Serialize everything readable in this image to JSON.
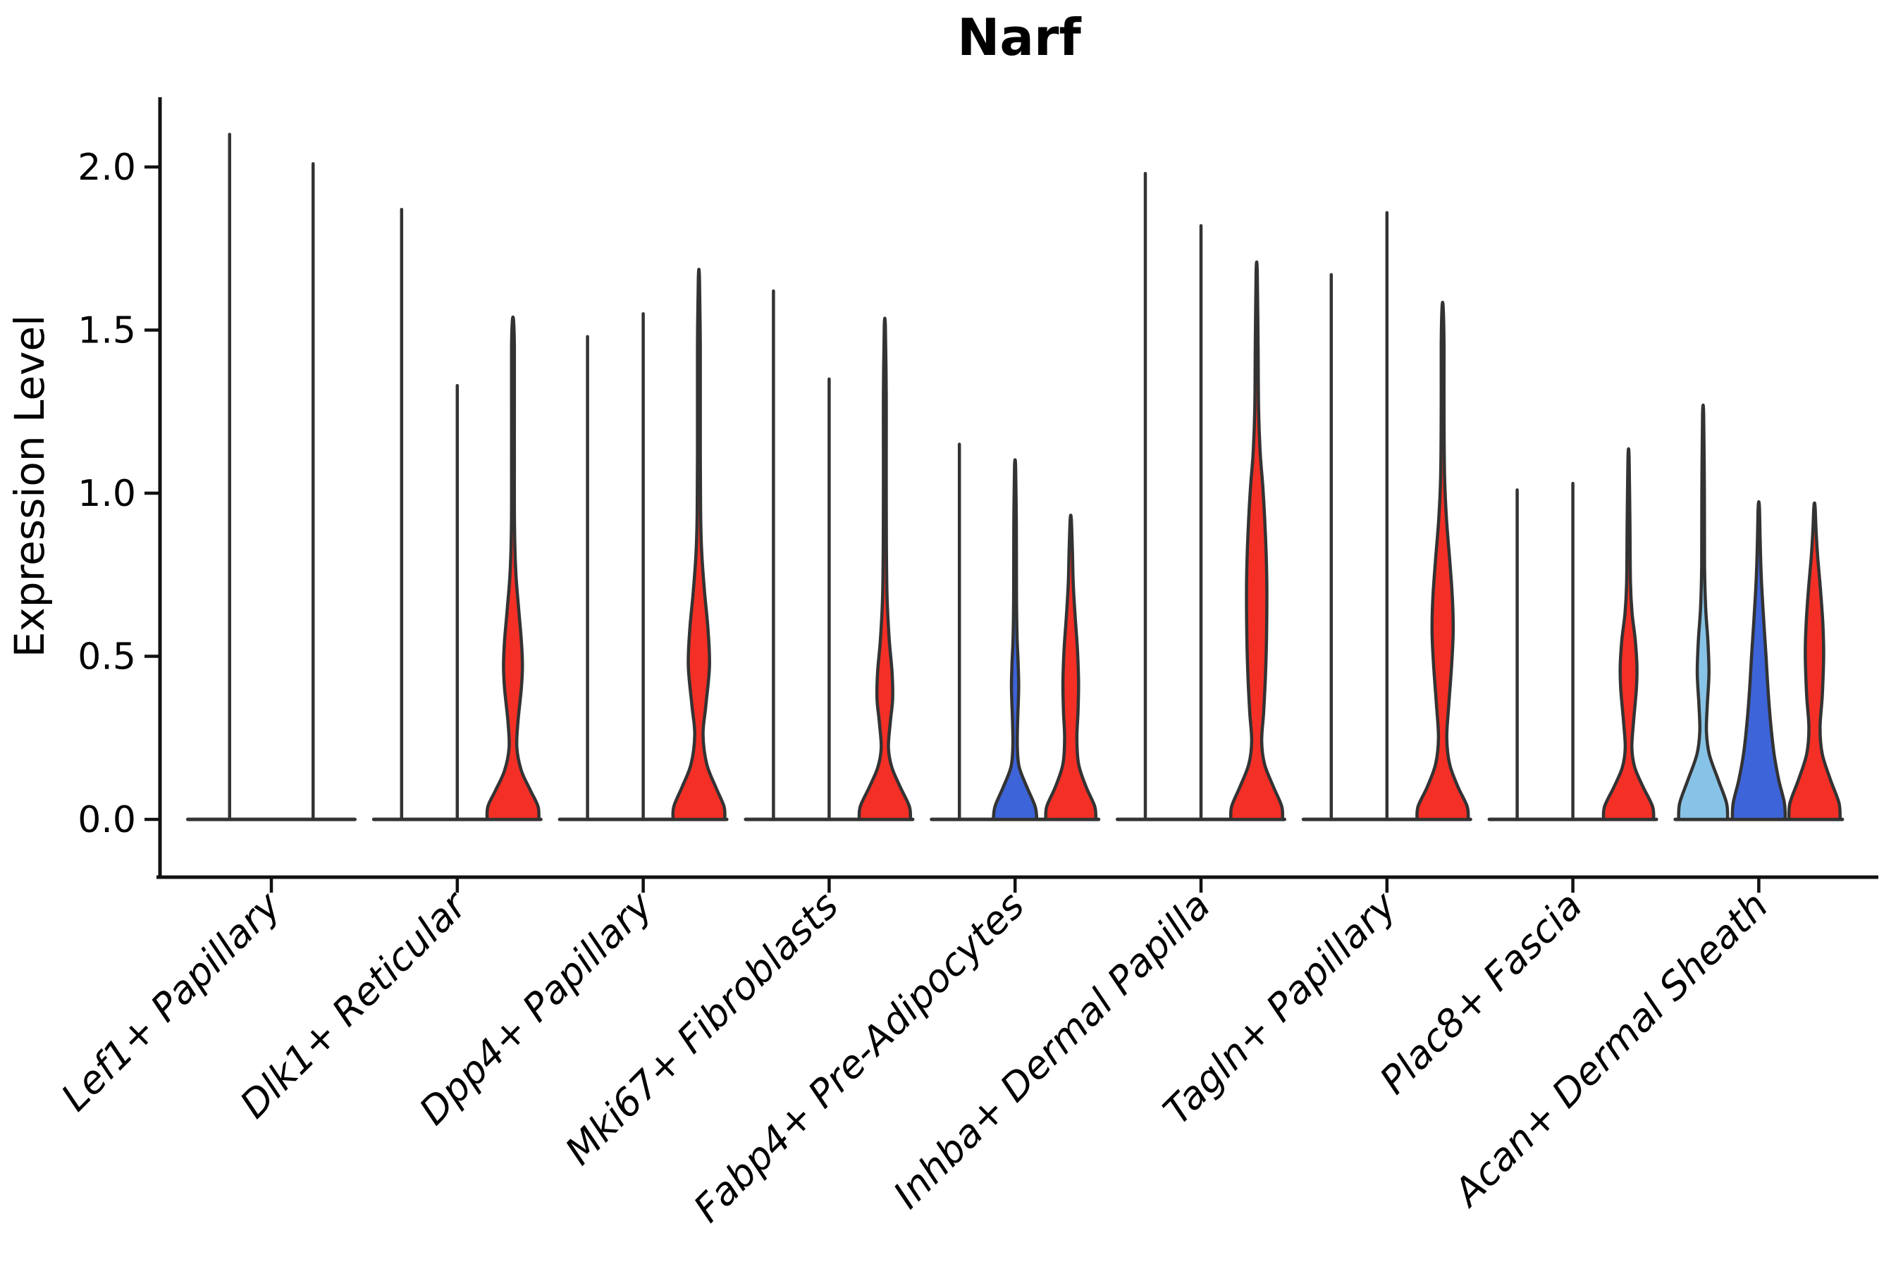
{
  "title": "Narf",
  "axes": {
    "ylabel": "Expression Level",
    "yticks": [
      "0.0",
      "0.5",
      "1.0",
      "1.5",
      "2.0"
    ],
    "ytick_values": [
      0.0,
      0.5,
      1.0,
      1.5,
      2.0
    ]
  },
  "palette": {
    "red": "#F42F26",
    "blue": "#3D64D8",
    "lightblue": "#87C3E6",
    "outline": "#333333",
    "axis": "#111111",
    "text": "#000000",
    "background": "#FFFFFF"
  },
  "chart_data": {
    "type": "violin",
    "title": "Narf",
    "ylabel": "Expression Level",
    "ylim": [
      -0.18,
      2.25
    ],
    "yticks": [
      0.0,
      0.5,
      1.0,
      1.5,
      2.0
    ],
    "grid": false,
    "legend": "none",
    "profile_format": "[expression_value, half_width_fraction_of_slot]; shape 'line' = zero-width violin (vertical spike at 0-density with flat base at 0)",
    "categories": [
      "Lef1+ Papillary",
      "Dlk1+ Reticular",
      "Dpp4+ Papillary",
      "Mki67+ Fibroblasts",
      "Fabp4+ Pre-Adipocytes",
      "Inhba+ Dermal Papilla",
      "Tagln+ Papillary",
      "Plac8+ Fascia",
      "Acan+ Dermal Sheath"
    ],
    "groups": [
      {
        "category": "Lef1+ Papillary",
        "violins": [
          {
            "shape": "line",
            "color": "outline",
            "max": 2.1
          },
          {
            "shape": "line",
            "color": "outline",
            "max": 2.01
          }
        ]
      },
      {
        "category": "Dlk1+ Reticular",
        "violins": [
          {
            "shape": "line",
            "color": "outline",
            "max": 1.87
          },
          {
            "shape": "line",
            "color": "outline",
            "max": 1.33
          },
          {
            "shape": "violin",
            "color": "red",
            "max": 1.53,
            "profile": [
              [
                0,
                0.93
              ],
              [
                0.04,
                0.9
              ],
              [
                0.09,
                0.62
              ],
              [
                0.15,
                0.3
              ],
              [
                0.22,
                0.14
              ],
              [
                0.3,
                0.18
              ],
              [
                0.4,
                0.3
              ],
              [
                0.47,
                0.34
              ],
              [
                0.55,
                0.3
              ],
              [
                0.65,
                0.2
              ],
              [
                0.76,
                0.1
              ],
              [
                0.9,
                0.055
              ],
              [
                1.1,
                0.05
              ],
              [
                1.3,
                0.05
              ],
              [
                1.45,
                0.05
              ],
              [
                1.53,
                0.02
              ]
            ]
          }
        ]
      },
      {
        "category": "Dpp4+ Papillary",
        "violins": [
          {
            "shape": "line",
            "color": "outline",
            "max": 1.48
          },
          {
            "shape": "line",
            "color": "outline",
            "max": 1.55
          },
          {
            "shape": "violin",
            "color": "red",
            "max": 1.66,
            "profile": [
              [
                0,
                0.93
              ],
              [
                0.04,
                0.9
              ],
              [
                0.1,
                0.6
              ],
              [
                0.17,
                0.28
              ],
              [
                0.26,
                0.15
              ],
              [
                0.35,
                0.25
              ],
              [
                0.47,
                0.38
              ],
              [
                0.58,
                0.33
              ],
              [
                0.7,
                0.2
              ],
              [
                0.82,
                0.1
              ],
              [
                0.95,
                0.06
              ],
              [
                1.2,
                0.05
              ],
              [
                1.45,
                0.05
              ],
              [
                1.66,
                0.02
              ]
            ]
          }
        ]
      },
      {
        "category": "Mki67+ Fibroblasts",
        "violins": [
          {
            "shape": "line",
            "color": "outline",
            "max": 1.62
          },
          {
            "shape": "line",
            "color": "outline",
            "max": 1.35
          },
          {
            "shape": "violin",
            "color": "red",
            "max": 1.51,
            "profile": [
              [
                0,
                0.92
              ],
              [
                0.04,
                0.88
              ],
              [
                0.1,
                0.55
              ],
              [
                0.16,
                0.25
              ],
              [
                0.22,
                0.13
              ],
              [
                0.3,
                0.2
              ],
              [
                0.37,
                0.28
              ],
              [
                0.45,
                0.26
              ],
              [
                0.55,
                0.16
              ],
              [
                0.68,
                0.08
              ],
              [
                0.85,
                0.055
              ],
              [
                1.1,
                0.05
              ],
              [
                1.3,
                0.05
              ],
              [
                1.51,
                0.02
              ]
            ]
          }
        ]
      },
      {
        "category": "Fabp4+ Pre-Adipocytes",
        "violins": [
          {
            "shape": "line",
            "color": "outline",
            "max": 1.15
          },
          {
            "shape": "violin",
            "color": "blue",
            "max": 1.08,
            "profile": [
              [
                0,
                0.78
              ],
              [
                0.04,
                0.72
              ],
              [
                0.1,
                0.42
              ],
              [
                0.16,
                0.15
              ],
              [
                0.22,
                0.08
              ],
              [
                0.3,
                0.09
              ],
              [
                0.4,
                0.13
              ],
              [
                0.48,
                0.11
              ],
              [
                0.56,
                0.07
              ],
              [
                0.7,
                0.05
              ],
              [
                0.9,
                0.045
              ],
              [
                1.08,
                0.02
              ]
            ]
          },
          {
            "shape": "violin",
            "color": "red",
            "max": 0.92,
            "profile": [
              [
                0,
                0.9
              ],
              [
                0.04,
                0.86
              ],
              [
                0.1,
                0.55
              ],
              [
                0.17,
                0.28
              ],
              [
                0.25,
                0.22
              ],
              [
                0.33,
                0.26
              ],
              [
                0.42,
                0.28
              ],
              [
                0.52,
                0.24
              ],
              [
                0.62,
                0.16
              ],
              [
                0.72,
                0.09
              ],
              [
                0.82,
                0.06
              ],
              [
                0.92,
                0.02
              ]
            ]
          }
        ]
      },
      {
        "category": "Inhba+ Dermal Papilla",
        "violins": [
          {
            "shape": "line",
            "color": "outline",
            "max": 1.98
          },
          {
            "shape": "line",
            "color": "outline",
            "max": 1.82
          },
          {
            "shape": "violin",
            "color": "red",
            "max": 1.68,
            "profile": [
              [
                0,
                0.93
              ],
              [
                0.04,
                0.9
              ],
              [
                0.1,
                0.6
              ],
              [
                0.17,
                0.28
              ],
              [
                0.24,
                0.18
              ],
              [
                0.33,
                0.25
              ],
              [
                0.45,
                0.32
              ],
              [
                0.6,
                0.36
              ],
              [
                0.75,
                0.36
              ],
              [
                0.9,
                0.3
              ],
              [
                1.02,
                0.22
              ],
              [
                1.12,
                0.13
              ],
              [
                1.25,
                0.07
              ],
              [
                1.45,
                0.05
              ],
              [
                1.68,
                0.02
              ]
            ]
          }
        ]
      },
      {
        "category": "Tagln+ Papillary",
        "violins": [
          {
            "shape": "line",
            "color": "outline",
            "max": 1.67
          },
          {
            "shape": "line",
            "color": "outline",
            "max": 1.86
          },
          {
            "shape": "violin",
            "color": "red",
            "max": 1.57,
            "profile": [
              [
                0,
                0.92
              ],
              [
                0.04,
                0.88
              ],
              [
                0.1,
                0.55
              ],
              [
                0.17,
                0.25
              ],
              [
                0.25,
                0.15
              ],
              [
                0.35,
                0.22
              ],
              [
                0.48,
                0.33
              ],
              [
                0.58,
                0.38
              ],
              [
                0.68,
                0.35
              ],
              [
                0.8,
                0.25
              ],
              [
                0.92,
                0.14
              ],
              [
                1.05,
                0.07
              ],
              [
                1.25,
                0.05
              ],
              [
                1.45,
                0.05
              ],
              [
                1.57,
                0.02
              ]
            ]
          }
        ]
      },
      {
        "category": "Plac8+ Fascia",
        "violins": [
          {
            "shape": "line",
            "color": "outline",
            "max": 1.01
          },
          {
            "shape": "line",
            "color": "outline",
            "max": 1.03
          },
          {
            "shape": "violin",
            "color": "red",
            "max": 1.11,
            "profile": [
              [
                0,
                0.9
              ],
              [
                0.04,
                0.86
              ],
              [
                0.1,
                0.52
              ],
              [
                0.16,
                0.22
              ],
              [
                0.22,
                0.12
              ],
              [
                0.3,
                0.18
              ],
              [
                0.4,
                0.28
              ],
              [
                0.47,
                0.3
              ],
              [
                0.55,
                0.24
              ],
              [
                0.63,
                0.13
              ],
              [
                0.72,
                0.07
              ],
              [
                0.9,
                0.05
              ],
              [
                1.11,
                0.02
              ]
            ]
          }
        ]
      },
      {
        "category": "Acan+ Dermal Sheath",
        "violins": [
          {
            "shape": "violin",
            "color": "lightblue",
            "max": 1.24,
            "profile": [
              [
                0,
                0.88
              ],
              [
                0.05,
                0.84
              ],
              [
                0.12,
                0.55
              ],
              [
                0.2,
                0.22
              ],
              [
                0.27,
                0.12
              ],
              [
                0.35,
                0.15
              ],
              [
                0.45,
                0.21
              ],
              [
                0.55,
                0.17
              ],
              [
                0.65,
                0.09
              ],
              [
                0.78,
                0.05
              ],
              [
                1.0,
                0.045
              ],
              [
                1.24,
                0.02
              ]
            ]
          },
          {
            "shape": "violin",
            "color": "blue",
            "max": 0.96,
            "profile": [
              [
                0,
                0.95
              ],
              [
                0.05,
                0.92
              ],
              [
                0.12,
                0.72
              ],
              [
                0.2,
                0.55
              ],
              [
                0.3,
                0.42
              ],
              [
                0.4,
                0.33
              ],
              [
                0.5,
                0.26
              ],
              [
                0.62,
                0.17
              ],
              [
                0.74,
                0.09
              ],
              [
                0.85,
                0.05
              ],
              [
                0.96,
                0.02
              ]
            ]
          },
          {
            "shape": "violin",
            "color": "red",
            "max": 0.96,
            "profile": [
              [
                0,
                0.92
              ],
              [
                0.05,
                0.88
              ],
              [
                0.12,
                0.58
              ],
              [
                0.2,
                0.28
              ],
              [
                0.28,
                0.2
              ],
              [
                0.38,
                0.28
              ],
              [
                0.5,
                0.33
              ],
              [
                0.6,
                0.3
              ],
              [
                0.7,
                0.22
              ],
              [
                0.8,
                0.12
              ],
              [
                0.88,
                0.06
              ],
              [
                0.96,
                0.02
              ]
            ]
          }
        ]
      }
    ]
  }
}
